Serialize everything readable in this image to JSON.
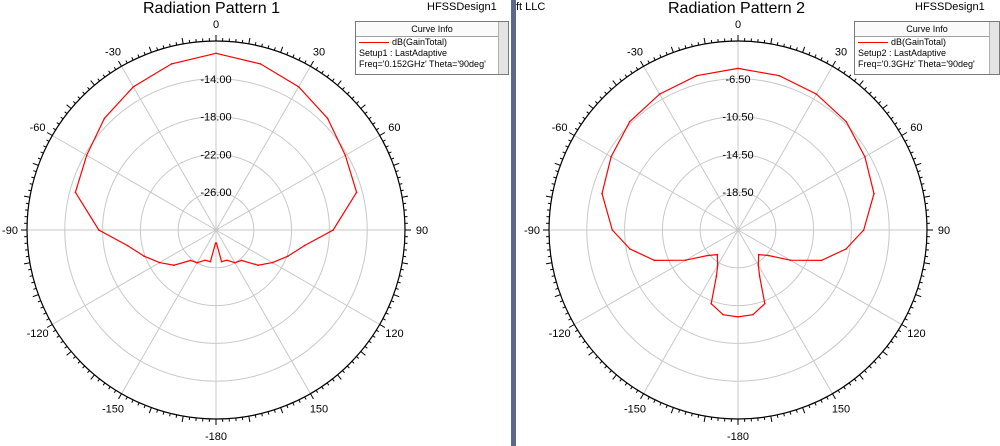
{
  "colors": {
    "trace": "#ff0000",
    "grid": "#c8c8c8",
    "outer_ring": "#000000",
    "divider": "#5a6a8a"
  },
  "left_panel": {
    "title": "Radiation Pattern 1",
    "design": "HFSSDesign1",
    "legend": {
      "header": "Curve Info",
      "entry": "dB(GainTotal)",
      "line2": "Setup1 : LastAdaptive",
      "line3": "Freq='0.152GHz' Theta='90deg'"
    }
  },
  "right_panel": {
    "corner_text": "ft LLC",
    "title": "Radiation Pattern 2",
    "design": "HFSSDesign1",
    "legend": {
      "header": "Curve Info",
      "entry": "dB(GainTotal)",
      "line2": "Setup2 : LastAdaptive",
      "line3": "Freq='0.3GHz' Theta='90deg'"
    }
  },
  "chart_data": [
    {
      "type": "polar",
      "title": "Radiation Pattern 1",
      "angle_unit": "deg",
      "angle_zero": "top",
      "angle_ticks": [
        0,
        30,
        60,
        90,
        120,
        150,
        -180,
        -150,
        -120,
        -90,
        -60,
        -30
      ],
      "radial_labels": [
        "-14.00",
        "-18.00",
        "-22.00",
        "-26.00"
      ],
      "radial_range": [
        -30,
        -10
      ],
      "series": [
        {
          "name": "dB(GainTotal)",
          "color": "#ff0000",
          "theta": [
            0,
            15,
            30,
            45,
            60,
            75,
            90,
            100,
            110,
            120,
            130,
            140,
            150,
            160,
            170,
            178,
            182,
            190,
            200,
            210,
            220,
            230,
            240,
            250,
            260,
            270,
            285,
            300,
            315,
            330,
            345
          ],
          "gain": [
            -11.3,
            -11.8,
            -12.5,
            -13.3,
            -14.2,
            -14.6,
            -17.6,
            -20.5,
            -21.9,
            -23.1,
            -24.2,
            -25.8,
            -26.0,
            -26.6,
            -26.6,
            -28.6,
            -28.6,
            -26.6,
            -26.6,
            -26.0,
            -25.8,
            -24.2,
            -23.1,
            -21.9,
            -20.5,
            -17.6,
            -14.6,
            -14.2,
            -13.3,
            -12.5,
            -11.8
          ]
        }
      ]
    },
    {
      "type": "polar",
      "title": "Radiation Pattern 2",
      "angle_unit": "deg",
      "angle_zero": "top",
      "angle_ticks": [
        0,
        30,
        60,
        90,
        120,
        150,
        -180,
        -150,
        -120,
        -90,
        -60,
        -30
      ],
      "radial_labels": [
        "-6.50",
        "-10.50",
        "-14.50",
        "-18.50"
      ],
      "radial_range": [
        -22.5,
        -2.5
      ],
      "series": [
        {
          "name": "dB(GainTotal)",
          "color": "#ff0000",
          "theta": [
            0,
            15,
            30,
            45,
            60,
            75,
            90,
            100,
            110,
            120,
            130,
            140,
            150,
            155,
            160,
            170,
            180,
            190,
            200,
            205,
            210,
            220,
            230,
            240,
            250,
            260,
            270,
            285,
            300,
            315,
            330,
            345
          ],
          "gain": [
            -5.4,
            -5.6,
            -5.9,
            -6.3,
            -7.0,
            -7.6,
            -9.2,
            -10.9,
            -13.1,
            -16.1,
            -18.3,
            -19.1,
            -18.2,
            -17.1,
            -14.2,
            -13.4,
            -13.3,
            -13.4,
            -14.2,
            -17.1,
            -18.2,
            -19.1,
            -18.3,
            -16.1,
            -13.1,
            -10.9,
            -9.2,
            -7.6,
            -7.0,
            -6.3,
            -5.9,
            -5.6
          ]
        }
      ]
    }
  ]
}
